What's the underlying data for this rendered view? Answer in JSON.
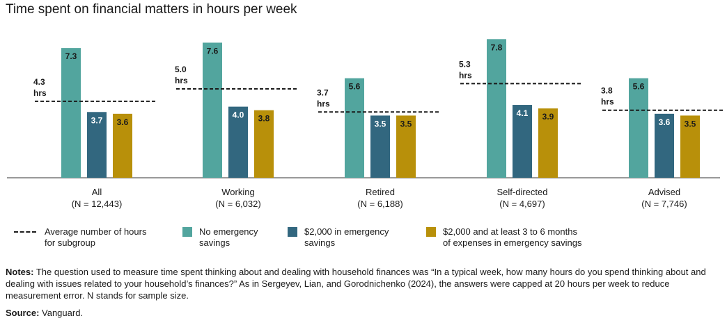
{
  "chart_data": {
    "type": "bar",
    "title": "Time spent on financial matters in hours per week",
    "categories": [
      "All",
      "Working",
      "Retired",
      "Self-directed",
      "Advised"
    ],
    "category_n": [
      "(N = 12,443)",
      "(N = 6,032)",
      "(N = 6,188)",
      "(N = 4,697)",
      "(N = 7,746)"
    ],
    "series": [
      {
        "name": "No emergency savings",
        "color": "#52a59e",
        "values": [
          7.3,
          7.6,
          5.6,
          7.8,
          5.6
        ]
      },
      {
        "name": "$2,000 in emergency savings",
        "color": "#32677f",
        "values": [
          3.7,
          4.0,
          3.5,
          4.1,
          3.6
        ]
      },
      {
        "name": "$2,000 and at least 3 to 6 months of expenses in emergency savings",
        "color": "#b8900a",
        "values": [
          3.6,
          3.8,
          3.5,
          3.9,
          3.5
        ]
      }
    ],
    "average": {
      "name": "Average number of hours for subgroup",
      "values": [
        4.3,
        5.0,
        3.7,
        5.3,
        3.8
      ],
      "labels": [
        "4.3\nhrs",
        "5.0\nhrs",
        "3.7\nhrs",
        "5.3\nhrs",
        "3.8\nhrs"
      ]
    },
    "ylim": [
      0,
      8.2
    ],
    "grid": false,
    "legend_position": "bottom"
  },
  "legend": {
    "average": "Average number of hours\nfor subgroup",
    "s1": "No emergency\nsavings",
    "s2": "$2,000 in emergency\nsavings",
    "s3": "$2,000 and at least 3 to 6 months\nof expenses in emergency savings"
  },
  "notes": {
    "label": "Notes:",
    "text": " The question used to measure time spent thinking about and dealing with household finances was “In a typical week, how many hours do you spend thinking about and dealing with issues related to your household’s finances?” As in Sergeyev, Lian, and Gorodnichenko (2024), the answers were capped at 20 hours per week to reduce measurement error. N stands for sample size."
  },
  "source": {
    "label": "Source:",
    "text": " Vanguard."
  }
}
